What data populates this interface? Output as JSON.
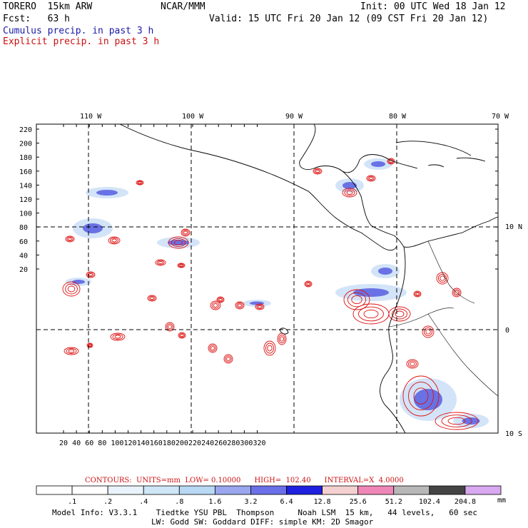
{
  "header": {
    "model": "TORERO  15km ARW",
    "org": "NCAR/MMM",
    "init": "Init: 00 UTC Wed 18 Jan 12",
    "fcst": "Fcst:   63 h",
    "valid": "Valid: 15 UTC Fri 20 Jan 12 (09 CST Fri 20 Jan 12)",
    "legend_cumulus": "Cumulus precip. in past 3 h",
    "legend_explicit": "Explicit precip. in past 3 h"
  },
  "map": {
    "lon_labels": [
      "110 W",
      "100 W",
      "90 W",
      "80 W",
      "70 W"
    ],
    "lat_labels": [
      "10 N",
      "0",
      "10 S"
    ],
    "y_ticks": [
      "220",
      "200",
      "180",
      "160",
      "140",
      "120",
      "100",
      "80",
      "60",
      "40",
      "20"
    ],
    "x_ticks": [
      "20",
      "40",
      "60",
      "80",
      "100",
      "120",
      "140",
      "160",
      "180",
      "200",
      "220",
      "240",
      "260",
      "280",
      "300",
      "320"
    ]
  },
  "contours_line": {
    "text": "CONTOURS:  UNITS=mm  LOW= 0.10000      HIGH=  102.40      INTERVAL=X  4.0000"
  },
  "colorbar": {
    "unit": "mm",
    "labels": [
      ".1",
      ".2",
      ".4",
      ".8",
      "1.6",
      "3.2",
      "6.4",
      "12.8",
      "25.6",
      "51.2",
      "102.4",
      "204.8"
    ],
    "colors": [
      "#ffffff",
      "#ffffff",
      "#e8f3fb",
      "#cfe6f7",
      "#b8d8f3",
      "#9aa6ee",
      "#6a70e8",
      "#2020e0",
      "#f4d0d0",
      "#ef88b8",
      "#b8b8b8",
      "#444444",
      "#d8a8f0"
    ]
  },
  "footer": {
    "line1": "Model Info: V3.3.1    Tiedtke YSU PBL  Thompson     Noah LSM  15 km,   44 levels,   60 sec",
    "line2": "LW: Godd SW: Goddard DIFF: simple KM: 2D Smagor"
  }
}
